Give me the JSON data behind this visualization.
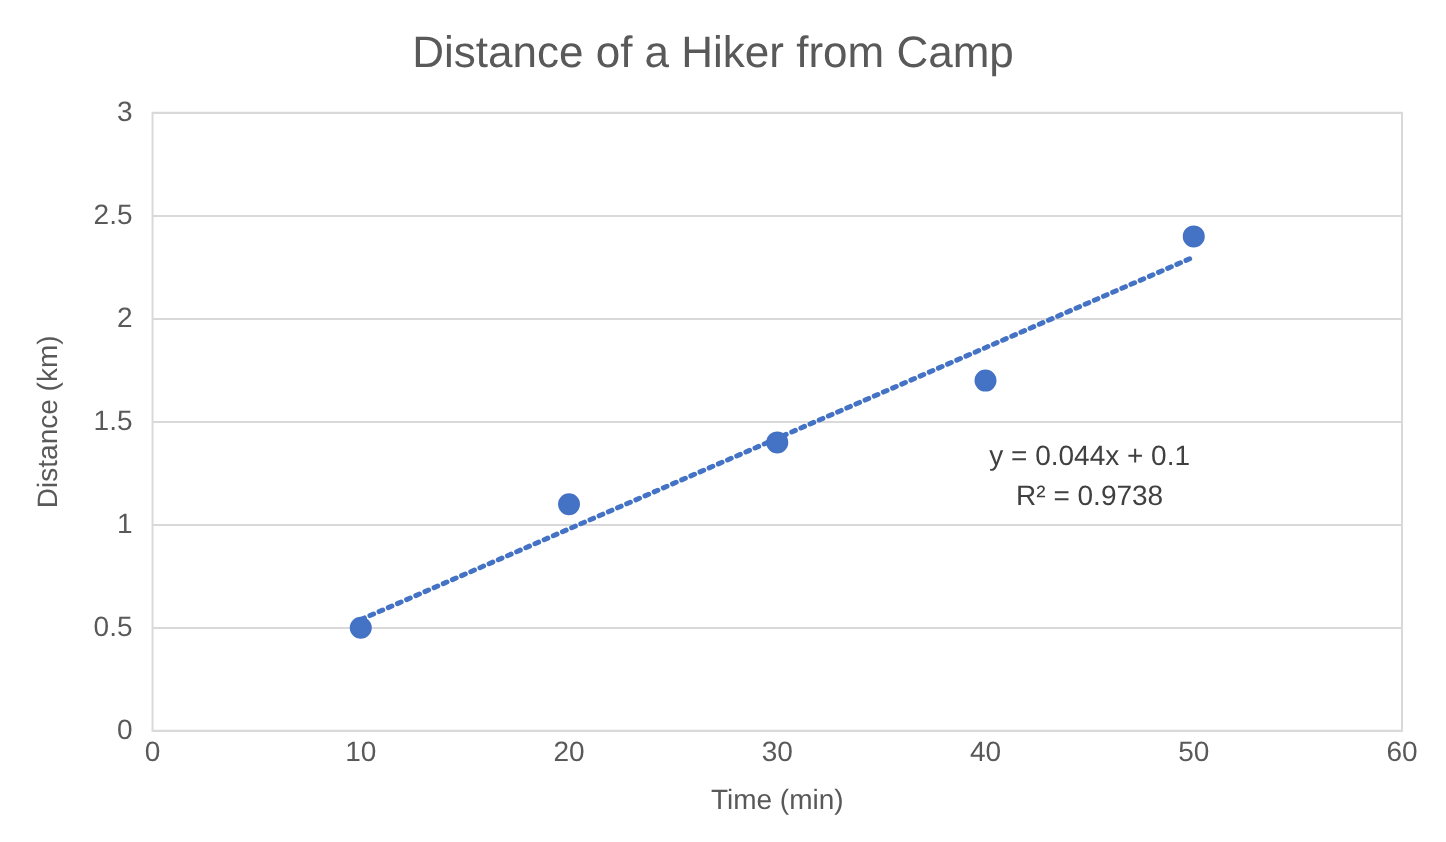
{
  "chart_data": {
    "type": "scatter",
    "title": "Distance of a Hiker from Camp",
    "xlabel": "Time (min)",
    "ylabel": "Distance (km)",
    "series": [
      {
        "color": "#4472c4",
        "x": [
          10,
          20,
          30,
          40,
          50
        ],
        "values": [
          0.5,
          1.1,
          1.4,
          1.7,
          2.4
        ],
        "marker": "circle"
      },
      {
        "type": "line",
        "color": "#4472c4",
        "x": [
          10,
          50
        ],
        "values": [
          0.54,
          2.3
        ],
        "marker": "none",
        "line_style": "dotted"
      }
    ],
    "xlim": [
      0,
      60
    ],
    "xticks": [
      0,
      10,
      20,
      30,
      40,
      50,
      60
    ],
    "ylim": [
      0,
      3
    ],
    "yticks": [
      0,
      0.5,
      1,
      1.5,
      2,
      2.5,
      3
    ],
    "grid": "y",
    "legend": false,
    "annotations": [
      "y = 0.044x + 0.1",
      "R² = 0.9738"
    ]
  }
}
